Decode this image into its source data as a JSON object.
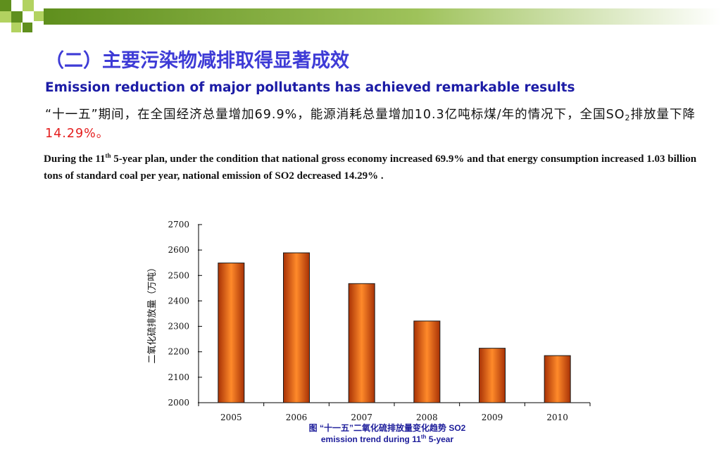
{
  "slide": {
    "title_cn": "（二）主要污染物减排取得显著成效",
    "title_en": "Emission reduction of major pollutants has achieved remarkable results",
    "body_cn_part1": "“十一五”期间，在全国经济总量增加69.9%，能源消耗总量增加10.3亿吨标煤/年的情况下，全国SO",
    "body_cn_sub": "2",
    "body_cn_part2": "排放量下降",
    "body_cn_highlight": "14.29%。",
    "body_en_part1": "During the 11",
    "body_en_sup": "th",
    "body_en_part2": " 5-year plan,  under the condition that national gross economy increased 69.9% and that energy consumption increased 1.03 billion tons of standard coal per year, national emission of SO2 decreased 14.29% .",
    "caption_line1": "图 “十一五”二氧化硫排放量变化趋势 SO2",
    "caption_line2_part1": "emission trend during 11",
    "caption_sup": "th",
    "caption_line2_part2": " 5-year"
  },
  "colors": {
    "title": "#3e3bd6",
    "subtitle": "#1c1ca6",
    "highlight": "#e41d1d",
    "bar_dark": "#a83206",
    "bar_light": "#ff8a2a",
    "header_green_dark": "#5f8f1d",
    "header_green_light": "#b2d260"
  },
  "chart_data": {
    "type": "bar",
    "categories": [
      "2005",
      "2006",
      "2007",
      "2008",
      "2009",
      "2010"
    ],
    "values": [
      2549,
      2589,
      2468,
      2321,
      2214,
      2185
    ],
    "title": "",
    "xlabel": "",
    "ylabel": "二氧化硫排放量（万吨）",
    "ylim": [
      2000,
      2700
    ],
    "yticks": [
      2000,
      2100,
      2200,
      2300,
      2400,
      2500,
      2600,
      2700
    ],
    "grid": false,
    "legend": "none"
  }
}
